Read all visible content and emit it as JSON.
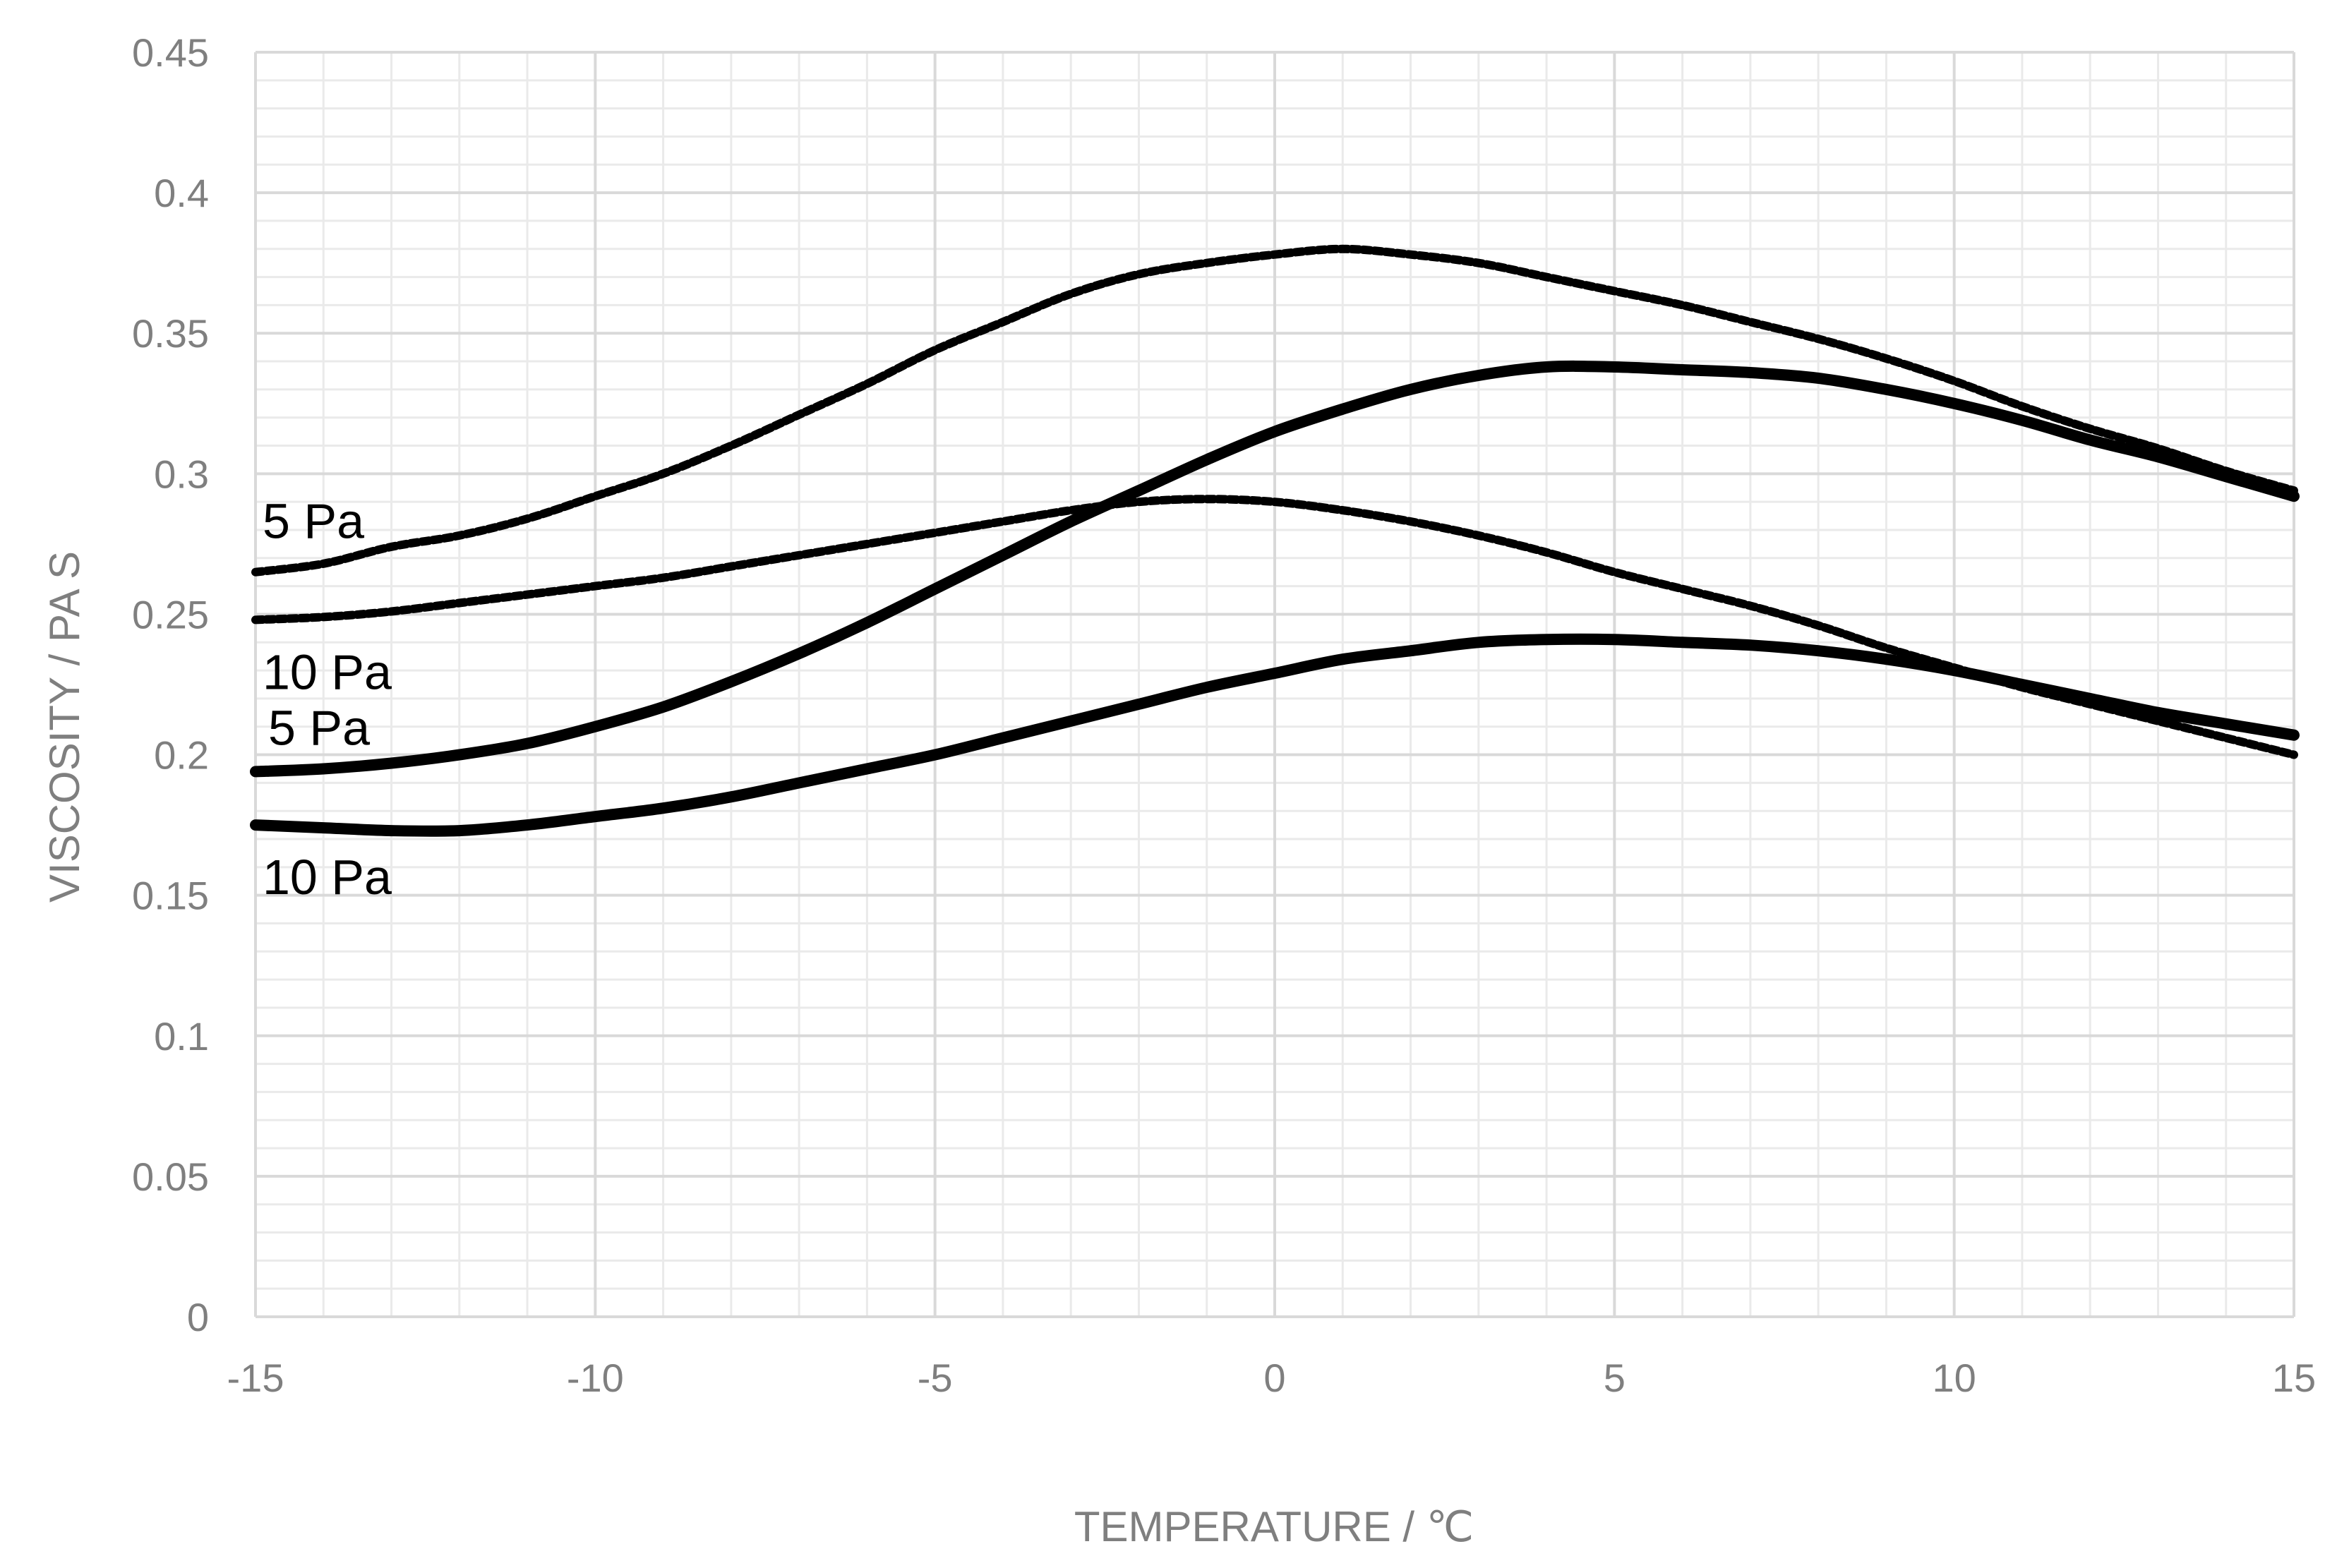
{
  "chart_data": {
    "type": "line",
    "title": "",
    "xlabel": "TEMPERATURE / ℃",
    "ylabel": "VISCOSITY / PA S",
    "xlim": [
      -15,
      15
    ],
    "ylim": [
      0,
      0.45
    ],
    "x_ticks": [
      "-15",
      "-10",
      "-5",
      "0",
      "5",
      "10",
      "15"
    ],
    "y_ticks": [
      "0",
      "0.05",
      "0.1",
      "0.15",
      "0.2",
      "0.25",
      "0.3",
      "0.35",
      "0.4",
      "0.45"
    ],
    "grid": true,
    "minor_grid": true,
    "legend": "none",
    "series": [
      {
        "name": "5 Pa",
        "style": "dotted",
        "x": [
          -15,
          -14,
          -13,
          -12,
          -11,
          -10,
          -9,
          -8,
          -7,
          -6,
          -5,
          -4,
          -3,
          -2,
          -1,
          0,
          1,
          2,
          3,
          4,
          5,
          6,
          7,
          8,
          9,
          10,
          11,
          12,
          13,
          14,
          15
        ],
        "y": [
          0.265,
          0.268,
          0.274,
          0.278,
          0.284,
          0.292,
          0.3,
          0.31,
          0.321,
          0.332,
          0.344,
          0.354,
          0.364,
          0.371,
          0.375,
          0.378,
          0.38,
          0.378,
          0.375,
          0.37,
          0.365,
          0.36,
          0.354,
          0.348,
          0.341,
          0.333,
          0.324,
          0.316,
          0.309,
          0.301,
          0.294
        ]
      },
      {
        "name": "10 Pa",
        "style": "dotted",
        "x": [
          -15,
          -14,
          -13,
          -12,
          -11,
          -10,
          -9,
          -8,
          -7,
          -6,
          -5,
          -4,
          -3,
          -2,
          -1,
          0,
          1,
          2,
          3,
          4,
          5,
          6,
          7,
          8,
          9,
          10,
          11,
          12,
          13,
          14,
          15
        ],
        "y": [
          0.248,
          0.249,
          0.251,
          0.254,
          0.257,
          0.26,
          0.263,
          0.267,
          0.271,
          0.275,
          0.279,
          0.283,
          0.287,
          0.29,
          0.291,
          0.29,
          0.287,
          0.283,
          0.278,
          0.272,
          0.265,
          0.259,
          0.253,
          0.246,
          0.238,
          0.231,
          0.224,
          0.218,
          0.212,
          0.206,
          0.2
        ]
      },
      {
        "name": "5 Pa",
        "style": "solid",
        "x": [
          -15,
          -14,
          -13,
          -12,
          -11,
          -10,
          -9,
          -8,
          -7,
          -6,
          -5,
          -4,
          -3,
          -2,
          -1,
          0,
          1,
          2,
          3,
          4,
          5,
          6,
          7,
          8,
          9,
          10,
          11,
          12,
          13,
          14,
          15
        ],
        "y": [
          0.194,
          0.195,
          0.197,
          0.2,
          0.204,
          0.21,
          0.217,
          0.226,
          0.236,
          0.247,
          0.259,
          0.271,
          0.283,
          0.294,
          0.305,
          0.315,
          0.323,
          0.33,
          0.335,
          0.338,
          0.338,
          0.337,
          0.336,
          0.334,
          0.33,
          0.325,
          0.319,
          0.312,
          0.306,
          0.299,
          0.292
        ]
      },
      {
        "name": "10 Pa",
        "style": "solid",
        "x": [
          -15,
          -14,
          -13,
          -12,
          -11,
          -10,
          -9,
          -8,
          -7,
          -6,
          -5,
          -4,
          -3,
          -2,
          -1,
          0,
          1,
          2,
          3,
          4,
          5,
          6,
          7,
          8,
          9,
          10,
          11,
          12,
          13,
          14,
          15
        ],
        "y": [
          0.175,
          0.174,
          0.173,
          0.173,
          0.175,
          0.178,
          0.181,
          0.185,
          0.19,
          0.195,
          0.2,
          0.206,
          0.212,
          0.218,
          0.224,
          0.229,
          0.234,
          0.237,
          0.24,
          0.241,
          0.241,
          0.24,
          0.239,
          0.237,
          0.234,
          0.23,
          0.225,
          0.22,
          0.215,
          0.211,
          0.207
        ]
      }
    ]
  }
}
